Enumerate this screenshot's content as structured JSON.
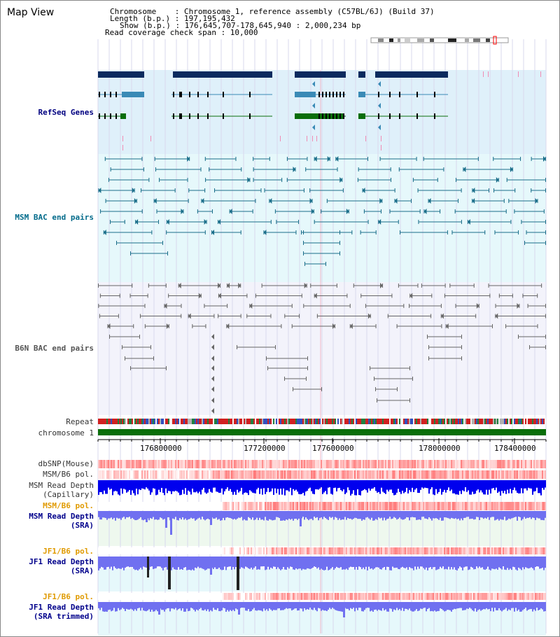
{
  "title": "Map View",
  "header": {
    "chromosome": "Chromosome    : Chromosome 1, reference assembly (C57BL/6J) (Build 37)",
    "length": "Length (b.p.) : 197,195,432",
    "show": "Show (b.p.) : 176,645,707-178,645,940 : 2,000,234 bp",
    "coverage": "Read coverage check span : 10,000"
  },
  "tracks": {
    "refseq": "RefSeq Genes",
    "msm_bac": "MSM BAC end pairs",
    "b6n_bac": "B6N BAC end pairs",
    "repeat": "Repeat",
    "chromosome": "chromosome 1",
    "dbsnp": "dbSNP(Mouse)",
    "msm_b6_pol": "MSM/B6 pol.",
    "msm_depth_cap": "MSM Read Depth\n(Capillary)",
    "msm_b6_pol_2": "MSM/B6 pol.",
    "msm_depth_sra": "MSM Read Depth\n(SRA)",
    "jf1_b6_pol": "JF1/B6 pol.",
    "jf1_depth_sra": "JF1 Read Depth\n(SRA)",
    "jf1_b6_pol_2": "JF1/B6 pol.",
    "jf1_depth_trim": "JF1 Read Depth\n(SRA trimmed)"
  },
  "axis": {
    "ticks": [
      "176800000",
      "177200000",
      "177600000",
      "178000000",
      "178400000"
    ]
  },
  "colors": {
    "refseq_bg": "#dff0fa",
    "msm_bg": "#e6f8fb",
    "b6n_bg": "#f3f3fb",
    "gene_navy": "#0a2a5e",
    "gene_teal": "#3a8ab6",
    "gene_green": "#0a6e0a",
    "bac_teal": "#1a6e8a",
    "bac_gray": "#666666",
    "depth_blue": "#0000ee",
    "depth_light_blue": "#7070f0",
    "pol_red": "#ff6060"
  }
}
